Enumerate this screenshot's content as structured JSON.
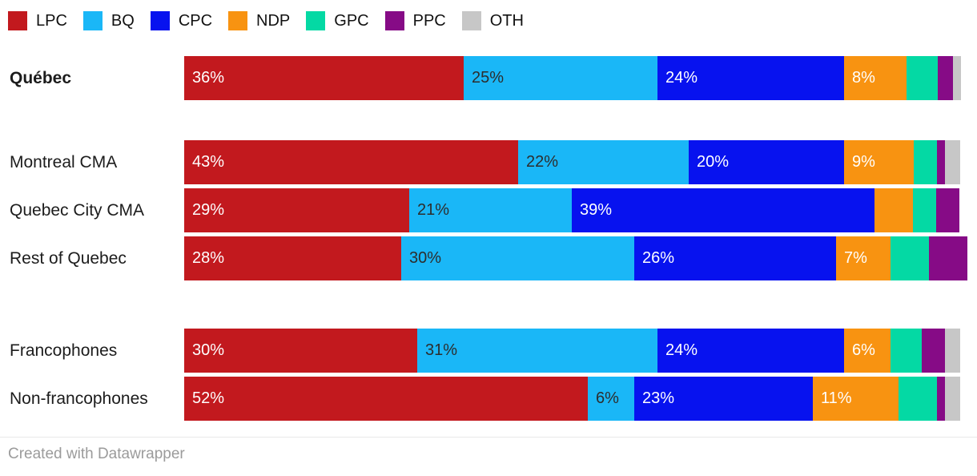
{
  "chart_data": {
    "type": "bar",
    "variant": "stacked-horizontal",
    "unit": "%",
    "legend_position": "top",
    "label_threshold": 6,
    "legend": [
      {
        "label": "LPC",
        "color": "#c2191e",
        "text_color": "#ffffff"
      },
      {
        "label": "BQ",
        "color": "#1ab7f7",
        "text_color": "#2d2d2d"
      },
      {
        "label": "CPC",
        "color": "#0712ef",
        "text_color": "#ffffff"
      },
      {
        "label": "NDP",
        "color": "#f89311",
        "text_color": "#ffffff"
      },
      {
        "label": "GPC",
        "color": "#04d9a4",
        "text_color": "#ffffff"
      },
      {
        "label": "PPC",
        "color": "#860b86",
        "text_color": "#ffffff"
      },
      {
        "label": "OTH",
        "color": "#c7c7c7",
        "text_color": "#2d2d2d"
      }
    ],
    "categories": [
      {
        "label": "Québec",
        "bold": true
      },
      {
        "label": "Montreal CMA",
        "bold": false
      },
      {
        "label": "Quebec City CMA",
        "bold": false
      },
      {
        "label": "Rest of Quebec",
        "bold": false
      },
      {
        "label": "Francophones",
        "bold": false
      },
      {
        "label": "Non-francophones",
        "bold": false
      }
    ],
    "groups": [
      [
        0
      ],
      [
        1,
        2,
        3
      ],
      [
        4,
        5
      ]
    ],
    "series": [
      {
        "name": "LPC",
        "values": [
          36,
          43,
          29,
          28,
          30,
          52
        ]
      },
      {
        "name": "BQ",
        "values": [
          25,
          22,
          21,
          30,
          31,
          6
        ]
      },
      {
        "name": "CPC",
        "values": [
          24,
          20,
          39,
          26,
          24,
          23
        ]
      },
      {
        "name": "NDP",
        "values": [
          8,
          9,
          5,
          7,
          6,
          11
        ]
      },
      {
        "name": "GPC",
        "values": [
          4,
          3,
          3,
          5,
          4,
          5
        ]
      },
      {
        "name": "PPC",
        "values": [
          2,
          1,
          3,
          5,
          3,
          1
        ]
      },
      {
        "name": "OTH",
        "values": [
          1,
          2,
          0,
          0,
          2,
          2
        ]
      }
    ]
  },
  "footer": {
    "attribution": "Created with Datawrapper"
  }
}
